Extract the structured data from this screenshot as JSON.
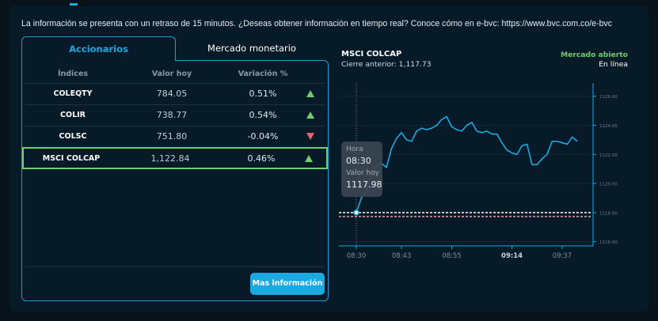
{
  "notice": "La información se presenta con un retraso de 15 minutos. ¿Deseas obtener información en tiempo real? Conoce cómo en e-bvc: https://www.bvc.com.co/e-bvc",
  "tabs": [
    {
      "label": "Accionarios",
      "active": true
    },
    {
      "label": "Mercado monetario",
      "active": false
    }
  ],
  "table": {
    "headers": [
      "Índices",
      "Valor hoy",
      "Variación %"
    ],
    "rows": [
      {
        "name": "COLEQTY",
        "value": "784.05",
        "change": "0.51%",
        "direction": "up"
      },
      {
        "name": "COLIR",
        "value": "738.77",
        "change": "0.54%",
        "direction": "up"
      },
      {
        "name": "COLSC",
        "value": "751.80",
        "change": "-0.04%",
        "direction": "down"
      },
      {
        "name": "MSCI COLCAP",
        "value": "1,122.84",
        "change": "0.46%",
        "direction": "up",
        "selected": true
      }
    ]
  },
  "more_button": "Mas información",
  "chart_header": {
    "title": "MSCI COLCAP",
    "previous_close": "Cierre anterior: 1,117.73",
    "market_status": "Mercado abierto",
    "connection": "En línea"
  },
  "tooltip": {
    "time_label": "Hora",
    "time": "08:30",
    "value_label": "Valor hoy",
    "value": "1117.98"
  },
  "colors": {
    "accent": "#1aa9e0",
    "up": "#6ccf6a",
    "down": "#e8686a",
    "line": "#1aa9e0"
  },
  "chart_data": {
    "type": "line",
    "title": "MSCI COLCAP",
    "values": [
      1118.0,
      1119.0,
      1119.5,
      1120.7,
      1121.2,
      1121.4,
      1121.1,
      1122.4,
      1123.1,
      1123.5,
      1123.0,
      1122.9,
      1123.6,
      1123.8,
      1123.7,
      1123.8,
      1124.0,
      1124.4,
      1124.6,
      1123.9,
      1123.7,
      1123.6,
      1124.0,
      1124.2,
      1123.6,
      1123.5,
      1123.6,
      1123.4,
      1123.4,
      1122.8,
      1122.3,
      1122.1,
      1122.0,
      1122.6,
      1122.7,
      1121.3,
      1121.3,
      1121.7,
      1122.0,
      1122.9,
      1122.9,
      1122.8,
      1122.7,
      1123.2,
      1122.9
    ],
    "x_ticks": [
      {
        "index": 0,
        "label": "08:30"
      },
      {
        "index": 9,
        "label": "08:43"
      },
      {
        "index": 19,
        "label": "08:55"
      },
      {
        "index": 31,
        "label": "09:14",
        "bold": true
      },
      {
        "index": 41,
        "label": "09:37"
      }
    ],
    "y_ticks": [
      "1116.00",
      "1118.00",
      "1120.00",
      "1122.00",
      "1124.00",
      "1126.00"
    ],
    "ylim": [
      1116,
      1126
    ],
    "y_axis_side": "right",
    "grid": true,
    "reference_lines": [
      {
        "value": 1118.0,
        "color": "#ffffff",
        "style": "dashed"
      },
      {
        "value": 1117.73,
        "color": "#e8a0a8",
        "style": "dashed"
      }
    ],
    "highlight_index": 0
  }
}
